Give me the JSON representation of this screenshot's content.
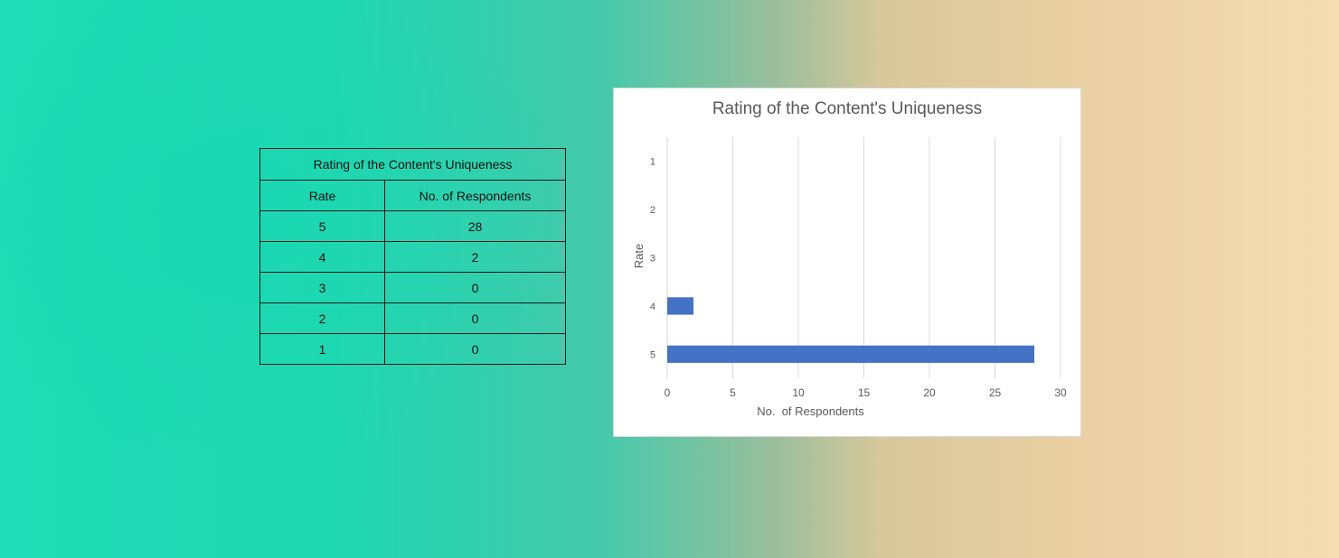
{
  "table": {
    "title": "Rating of the Content's Uniqueness",
    "headers": [
      "Rate",
      "No. of Respondents"
    ],
    "rows": [
      {
        "rate": "5",
        "count": "28"
      },
      {
        "rate": "4",
        "count": "2"
      },
      {
        "rate": "3",
        "count": "0"
      },
      {
        "rate": "2",
        "count": "0"
      },
      {
        "rate": "1",
        "count": "0"
      }
    ]
  },
  "chart_data": {
    "type": "bar",
    "orientation": "horizontal",
    "title": "Rating of the Content's Uniqueness",
    "xlabel": "No.  of Respondents",
    "ylabel": "Rate",
    "categories": [
      "1",
      "2",
      "3",
      "4",
      "5"
    ],
    "values": [
      0,
      0,
      0,
      2,
      28
    ],
    "xlim": [
      0,
      30
    ],
    "xticks": [
      0,
      5,
      10,
      15,
      20,
      25,
      30
    ],
    "grid": "vertical",
    "legend": "none",
    "bar_color": "#4472C4"
  }
}
